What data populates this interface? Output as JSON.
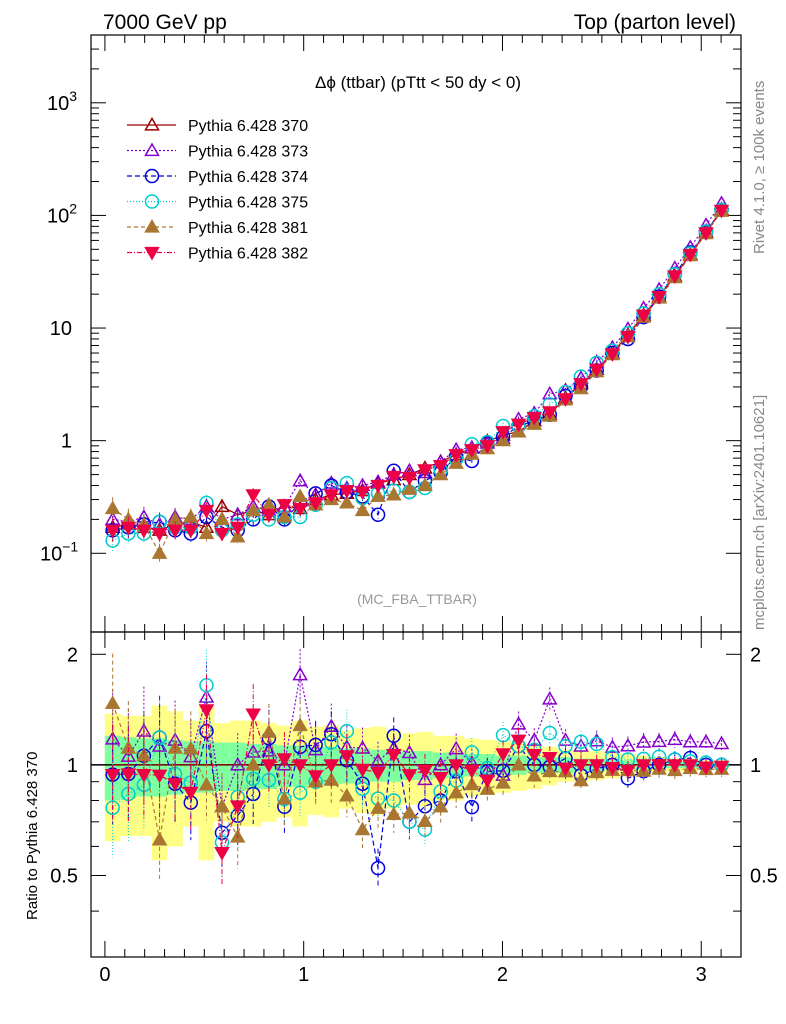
{
  "header": {
    "left": "7000 GeV pp",
    "right": "Top (parton level)"
  },
  "side_labels": {
    "rivet": "Rivet 4.1.0, ≥ 100k events",
    "mcplots": "mcplots.cern.ch [arXiv:2401.10621]"
  },
  "colors": {
    "band_inner": "#80ff9f",
    "band_outer": "#ffff88",
    "frame": "#000000",
    "watermark": "#999999"
  },
  "chart_data": [
    {
      "type": "line",
      "panel": "main",
      "title": "Δϕ (ttbar) (pTtt < 50 dy < 0)",
      "annotation": "(MC_FBA_TTBAR)",
      "xlim": [
        -0.07,
        3.2
      ],
      "ylim": [
        0.02,
        4000
      ],
      "yscale": "log",
      "xticks": [
        0,
        1,
        2,
        3
      ],
      "xtick_labels": [
        "0",
        "1",
        "2",
        "3"
      ],
      "ytick_labels": [
        {
          "value": 0.1,
          "base": "10",
          "exp": "−1"
        },
        {
          "value": 1,
          "base": "1",
          "exp": ""
        },
        {
          "value": 10,
          "base": "10",
          "exp": ""
        },
        {
          "value": 100,
          "base": "10",
          "exp": "2"
        },
        {
          "value": 1000,
          "base": "10",
          "exp": "3"
        }
      ],
      "x": [
        0.039,
        0.118,
        0.196,
        0.275,
        0.353,
        0.432,
        0.511,
        0.589,
        0.668,
        0.746,
        0.825,
        0.903,
        0.982,
        1.06,
        1.139,
        1.217,
        1.296,
        1.374,
        1.453,
        1.532,
        1.61,
        1.689,
        1.767,
        1.846,
        1.924,
        2.003,
        2.081,
        2.16,
        2.238,
        2.317,
        2.395,
        2.474,
        2.553,
        2.631,
        2.71,
        2.788,
        2.867,
        2.945,
        3.024,
        3.102
      ],
      "series": [
        {
          "name": "Pythia 6.428 370",
          "color": "#9a0000",
          "marker": "triangle-up-open",
          "dash": "",
          "values": [
            0.17,
            0.18,
            0.17,
            0.16,
            0.18,
            0.19,
            0.17,
            0.26,
            0.22,
            0.24,
            0.22,
            0.26,
            0.25,
            0.3,
            0.33,
            0.34,
            0.36,
            0.42,
            0.45,
            0.5,
            0.57,
            0.65,
            0.75,
            0.86,
            0.99,
            1.12,
            1.2,
            1.5,
            1.72,
            2.4,
            3.2,
            4.3,
            6.0,
            8.7,
            13.0,
            19.0,
            29.0,
            45.0,
            71.0,
            112.0
          ]
        },
        {
          "name": "Pythia 6.428 373",
          "color": "#8800cc",
          "marker": "triangle-up-open",
          "dash": "2,2",
          "values": [
            0.2,
            0.19,
            0.21,
            0.18,
            0.21,
            0.2,
            0.26,
            0.2,
            0.22,
            0.26,
            0.24,
            0.26,
            0.44,
            0.33,
            0.42,
            0.38,
            0.4,
            0.43,
            0.5,
            0.54,
            0.52,
            0.65,
            0.83,
            0.87,
            0.95,
            1.05,
            1.55,
            1.75,
            2.6,
            2.8,
            3.6,
            5.0,
            6.7,
            9.8,
            15.0,
            22.0,
            34.0,
            52.0,
            82.0,
            128.0
          ]
        },
        {
          "name": "Pythia 6.428 374",
          "color": "#0000dd",
          "marker": "circle-open",
          "dash": "5,3",
          "values": [
            0.16,
            0.17,
            0.18,
            0.19,
            0.16,
            0.15,
            0.21,
            0.17,
            0.16,
            0.2,
            0.26,
            0.2,
            0.28,
            0.34,
            0.4,
            0.35,
            0.32,
            0.22,
            0.54,
            0.35,
            0.44,
            0.52,
            0.72,
            0.66,
            0.95,
            1.08,
            1.35,
            1.5,
            1.7,
            2.5,
            3.0,
            4.2,
            6.0,
            8.0,
            12.5,
            19.0,
            30.0,
            47.0,
            71.0,
            112.0
          ]
        },
        {
          "name": "Pythia 6.428 375",
          "color": "#00cccc",
          "marker": "circle-open",
          "dash": "1,2",
          "values": [
            0.13,
            0.15,
            0.15,
            0.19,
            0.17,
            0.17,
            0.28,
            0.16,
            0.18,
            0.22,
            0.2,
            0.21,
            0.21,
            0.27,
            0.38,
            0.42,
            0.31,
            0.34,
            0.36,
            0.35,
            0.38,
            0.55,
            0.68,
            0.93,
            0.97,
            1.35,
            1.35,
            1.65,
            2.1,
            2.7,
            3.7,
            4.9,
            6.3,
            9.0,
            13.5,
            20.0,
            30.0,
            46.0,
            72.0,
            112.0
          ]
        },
        {
          "name": "Pythia 6.428 381",
          "color": "#aa7733",
          "marker": "triangle-up-filled",
          "dash": "4,3",
          "values": [
            0.25,
            0.2,
            0.18,
            0.1,
            0.2,
            0.21,
            0.15,
            0.2,
            0.14,
            0.24,
            0.27,
            0.21,
            0.32,
            0.27,
            0.3,
            0.28,
            0.24,
            0.32,
            0.33,
            0.37,
            0.4,
            0.5,
            0.63,
            0.76,
            0.85,
            1.0,
            1.2,
            1.4,
            1.65,
            2.3,
            2.9,
            4.1,
            5.8,
            8.4,
            12.5,
            18.5,
            28.0,
            44.0,
            69.0,
            109.0
          ]
        },
        {
          "name": "Pythia 6.428 382",
          "color": "#ee0044",
          "marker": "triangle-down-filled",
          "dash": "5,2,1,2",
          "values": [
            0.16,
            0.17,
            0.16,
            0.15,
            0.16,
            0.16,
            0.24,
            0.15,
            0.17,
            0.33,
            0.22,
            0.27,
            0.25,
            0.28,
            0.33,
            0.36,
            0.35,
            0.4,
            0.48,
            0.47,
            0.55,
            0.6,
            0.75,
            0.83,
            0.9,
            1.2,
            1.4,
            1.6,
            1.8,
            2.35,
            3.2,
            4.3,
            5.9,
            8.4,
            13.0,
            19.0,
            29.0,
            45.0,
            70.0,
            111.0
          ]
        }
      ]
    },
    {
      "type": "line",
      "panel": "ratio",
      "ylabel": "Ratio to Pythia 6.428 370",
      "xlim": [
        -0.07,
        3.2
      ],
      "ylim": [
        0.3,
        2.3
      ],
      "yscale": "log",
      "ytick_labels": [
        {
          "value": 0.5,
          "label": "0.5"
        },
        {
          "value": 1,
          "label": "1"
        },
        {
          "value": 2,
          "label": "2"
        }
      ],
      "band_inner_halfwidth": [
        0.2,
        0.19,
        0.18,
        0.18,
        0.17,
        0.16,
        0.16,
        0.15,
        0.15,
        0.14,
        0.14,
        0.13,
        0.13,
        0.12,
        0.12,
        0.11,
        0.11,
        0.1,
        0.1,
        0.09,
        0.09,
        0.08,
        0.08,
        0.07,
        0.07,
        0.06,
        0.06,
        0.05,
        0.05,
        0.05,
        0.04,
        0.04,
        0.03,
        0.03,
        0.03,
        0.02,
        0.02,
        0.02,
        0.02,
        0.01
      ],
      "band_outer_halfwidth": [
        0.38,
        0.36,
        0.36,
        0.45,
        0.4,
        0.32,
        0.45,
        0.3,
        0.32,
        0.32,
        0.3,
        0.28,
        0.32,
        0.27,
        0.28,
        0.24,
        0.26,
        0.27,
        0.24,
        0.22,
        0.23,
        0.2,
        0.2,
        0.18,
        0.17,
        0.16,
        0.15,
        0.14,
        0.12,
        0.1,
        0.1,
        0.09,
        0.08,
        0.07,
        0.06,
        0.05,
        0.04,
        0.04,
        0.03,
        0.03
      ]
    }
  ]
}
